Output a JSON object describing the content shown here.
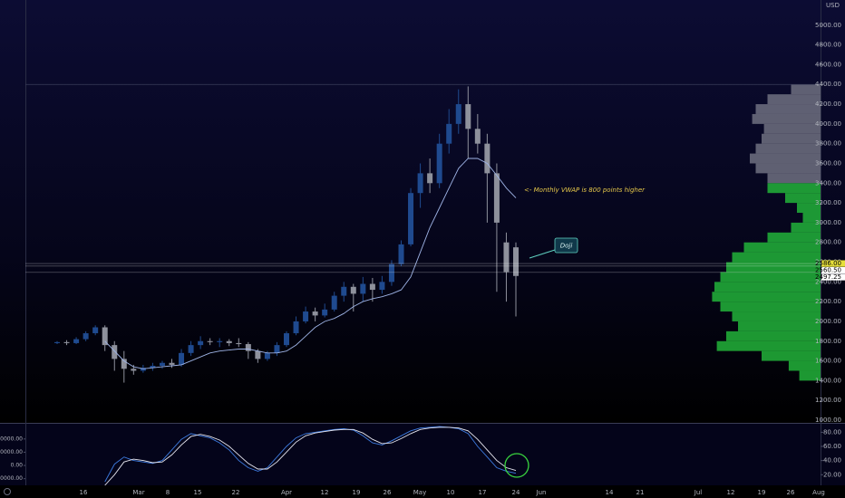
{
  "header": {
    "currency": "USD"
  },
  "chart_data": [
    {
      "type": "candlestick",
      "ylim": [
        1000,
        5200
      ],
      "yticks": [
        {
          "value": 1000,
          "label": "1000.00"
        },
        {
          "value": 1200,
          "label": "1200.00"
        },
        {
          "value": 1400,
          "label": "1400.00"
        },
        {
          "value": 1600,
          "label": "1600.00"
        },
        {
          "value": 1800,
          "label": "1800.00"
        },
        {
          "value": 2000,
          "label": "2000.00"
        },
        {
          "value": 2200,
          "label": "2200.00"
        },
        {
          "value": 2400,
          "label": "2400.00"
        },
        {
          "value": 2600,
          "label": "2600.00"
        },
        {
          "value": 2800,
          "label": "2800.00"
        },
        {
          "value": 3000,
          "label": "3000.00"
        },
        {
          "value": 3200,
          "label": "3200.00"
        },
        {
          "value": 3400,
          "label": "3400.00"
        },
        {
          "value": 3600,
          "label": "3600.00"
        },
        {
          "value": 3800,
          "label": "3800.00"
        },
        {
          "value": 4000,
          "label": "4000.00"
        },
        {
          "value": 4200,
          "label": "4200.00"
        },
        {
          "value": 4400,
          "label": "4400.00"
        },
        {
          "value": 4600,
          "label": "4600.00"
        },
        {
          "value": 4800,
          "label": "4800.00"
        },
        {
          "value": 5000,
          "label": "5000.00"
        }
      ],
      "xtick_labels": [
        "16",
        "Mar",
        "8",
        "15",
        "22",
        "Apr",
        "12",
        "19",
        "26",
        "May",
        "10",
        "17",
        "24",
        "Jun",
        "14",
        "21",
        "Jul",
        "12",
        "19",
        "26",
        "Aug"
      ],
      "up_color": "#1f4a8f",
      "down_color": "#8e919c",
      "open": [
        1780,
        1790,
        1780,
        1820,
        1880,
        1940,
        1760,
        1620,
        1520,
        1500,
        1530,
        1550,
        1580,
        1560,
        1680,
        1760,
        1800,
        1790,
        1800,
        1780,
        1770,
        1700,
        1620,
        1680,
        1760,
        1880,
        2000,
        2100,
        2060,
        2120,
        2260,
        2350,
        2280,
        2380,
        2320,
        2400,
        2580,
        2780,
        3300,
        3500,
        3400,
        3800,
        4000,
        4200,
        3950,
        3800,
        3500,
        2800,
        2750
      ],
      "high": [
        1800,
        1810,
        1840,
        1900,
        1960,
        1960,
        1800,
        1700,
        1560,
        1560,
        1580,
        1600,
        1620,
        1720,
        1800,
        1850,
        1830,
        1830,
        1820,
        1830,
        1790,
        1720,
        1700,
        1790,
        1900,
        2050,
        2150,
        2140,
        2180,
        2300,
        2400,
        2380,
        2450,
        2440,
        2460,
        2620,
        2820,
        3350,
        3600,
        3650,
        3900,
        4150,
        4350,
        4380,
        4100,
        3900,
        3600,
        2900,
        2800
      ],
      "low": [
        1770,
        1760,
        1770,
        1800,
        1860,
        1700,
        1500,
        1380,
        1460,
        1480,
        1500,
        1520,
        1530,
        1540,
        1650,
        1720,
        1760,
        1740,
        1750,
        1740,
        1620,
        1580,
        1600,
        1650,
        1740,
        1860,
        1980,
        2000,
        2040,
        2100,
        2200,
        2100,
        2200,
        2200,
        2280,
        2360,
        2560,
        2760,
        3150,
        3300,
        3350,
        3700,
        3900,
        3650,
        3700,
        3000,
        2300,
        2200,
        2050
      ],
      "close": [
        1790,
        1780,
        1820,
        1880,
        1940,
        1760,
        1620,
        1520,
        1500,
        1530,
        1550,
        1580,
        1560,
        1680,
        1760,
        1800,
        1790,
        1800,
        1780,
        1770,
        1700,
        1620,
        1680,
        1760,
        1880,
        2000,
        2100,
        2060,
        2120,
        2260,
        2350,
        2280,
        2380,
        2320,
        2400,
        2580,
        2780,
        3300,
        3500,
        3400,
        3800,
        4000,
        4200,
        3950,
        3800,
        3500,
        3000,
        2500,
        2460
      ],
      "vwap": {
        "color": "#9fb4e6",
        "values": [
          null,
          null,
          null,
          null,
          null,
          1800,
          1700,
          1600,
          1540,
          1520,
          1530,
          1540,
          1550,
          1560,
          1600,
          1640,
          1680,
          1700,
          1710,
          1720,
          1720,
          1700,
          1680,
          1680,
          1700,
          1760,
          1850,
          1940,
          2000,
          2030,
          2080,
          2150,
          2200,
          2230,
          2250,
          2280,
          2320,
          2450,
          2700,
          2950,
          3150,
          3350,
          3550,
          3650,
          3650,
          3600,
          3480,
          3350,
          3250
        ]
      },
      "hlines": [
        4400
      ],
      "price_labels": [
        {
          "value": 2586,
          "label": "2586.00",
          "color": "#e6df3a"
        },
        {
          "value": 2560.5,
          "label": "2560.50",
          "color": "#ffffff"
        },
        {
          "value": 2497.25,
          "label": "2497.25",
          "color": "#ffffff"
        }
      ],
      "annotations": [
        {
          "text": "<- Monthly VWAP is 800 points higher"
        },
        {
          "text": "Doji"
        }
      ]
    },
    {
      "type": "line",
      "ylim": [
        5,
        92
      ],
      "yticks": [
        {
          "value": 80,
          "label": "80.00"
        },
        {
          "value": 60,
          "label": "60.00"
        },
        {
          "value": 40,
          "label": "40.00"
        },
        {
          "value": 20,
          "label": "20.00"
        }
      ],
      "y2lim": [
        -15000,
        31500
      ],
      "y2ticks": [
        {
          "value": 20000,
          "label": "20000.00"
        },
        {
          "value": 10000,
          "label": "10000.00"
        },
        {
          "value": 0,
          "label": "0.00"
        },
        {
          "value": -10000,
          "label": "-10000.00"
        }
      ],
      "series": [
        {
          "color": "#3d7be0",
          "values": [
            null,
            null,
            null,
            null,
            null,
            10,
            35,
            45,
            40,
            38,
            36,
            40,
            55,
            70,
            78,
            75,
            72,
            65,
            55,
            40,
            30,
            25,
            30,
            45,
            60,
            72,
            78,
            80,
            82,
            84,
            85,
            83,
            75,
            65,
            62,
            68,
            75,
            82,
            86,
            87,
            88,
            87,
            85,
            78,
            60,
            45,
            30,
            25,
            22
          ]
        },
        {
          "color": "#e6e6f0",
          "values": [
            null,
            null,
            null,
            null,
            null,
            5,
            20,
            38,
            42,
            40,
            37,
            38,
            48,
            62,
            74,
            77,
            74,
            69,
            60,
            48,
            36,
            28,
            28,
            38,
            52,
            66,
            75,
            79,
            81,
            83,
            84,
            84,
            79,
            70,
            64,
            65,
            71,
            78,
            84,
            86,
            87,
            87,
            86,
            82,
            70,
            55,
            40,
            30,
            26
          ]
        }
      ]
    },
    {
      "type": "volume-profile",
      "vlim": [
        0,
        100
      ],
      "series": [
        {
          "color": "#6e7080",
          "bins": [
            3400,
            3500,
            3600,
            3700,
            3800,
            3900,
            4000,
            4100,
            4200,
            4300,
            4400
          ],
          "values": [
            45,
            55,
            60,
            55,
            50,
            48,
            58,
            55,
            45,
            25
          ]
        },
        {
          "color": "#22b33a",
          "bins": [
            1400,
            1500,
            1600,
            1700,
            1800,
            1900,
            2000,
            2100,
            2200,
            2300,
            2400,
            2500,
            2600,
            2700,
            2800,
            2900,
            3000,
            3100,
            3200,
            3300,
            3400
          ],
          "values": [
            18,
            27,
            50,
            88,
            80,
            70,
            75,
            85,
            92,
            90,
            85,
            80,
            75,
            65,
            45,
            25,
            15,
            20,
            30,
            45
          ]
        }
      ]
    }
  ]
}
